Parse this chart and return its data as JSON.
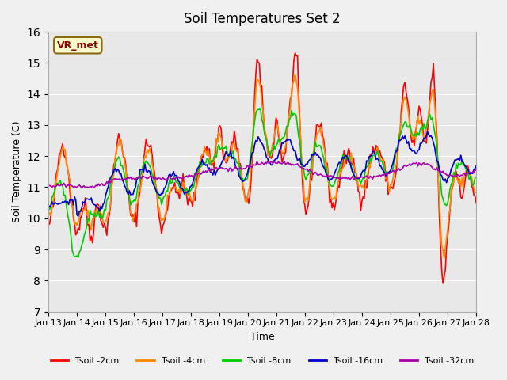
{
  "title": "Soil Temperatures Set 2",
  "xlabel": "Time",
  "ylabel": "Soil Temperature (C)",
  "ylim": [
    7.0,
    16.0
  ],
  "yticks": [
    7.0,
    8.0,
    9.0,
    10.0,
    11.0,
    12.0,
    13.0,
    14.0,
    15.0,
    16.0
  ],
  "xtick_labels": [
    "Jan 13",
    "Jan 14",
    "Jan 15",
    "Jan 16",
    "Jan 17",
    "Jan 18",
    "Jan 19",
    "Jan 20",
    "Jan 21",
    "Jan 22",
    "Jan 23",
    "Jan 24",
    "Jan 25",
    "Jan 26",
    "Jan 27",
    "Jan 28"
  ],
  "colors": {
    "2cm": "#ff0000",
    "4cm": "#ff8800",
    "8cm": "#00cc00",
    "16cm": "#0000cc",
    "32cm": "#aa00aa"
  },
  "labels": {
    "2cm": "Tsoil -2cm",
    "4cm": "Tsoil -4cm",
    "8cm": "Tsoil -8cm",
    "16cm": "Tsoil -16cm",
    "32cm": "Tsoil -32cm"
  },
  "legend_label": "VR_met",
  "bg_color": "#e8e8e8",
  "plot_bg_color": "#e8e8e8",
  "n_points": 360,
  "linewidth": 1.2
}
